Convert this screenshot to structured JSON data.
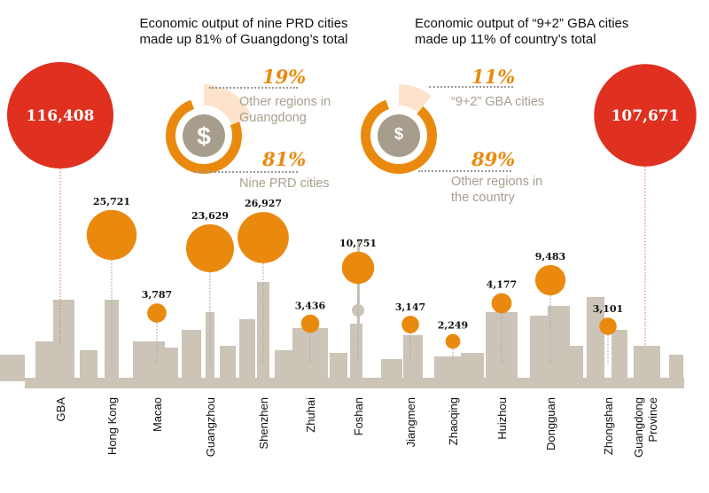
{
  "left_panel": {
    "title": "Economic output of nine PRD cities made up 81% of Guangdong’s total",
    "top_pct": "19%",
    "top_label": "Other regions in Guangdong",
    "bottom_pct": "81%",
    "bottom_label": "Nine PRD cities",
    "icon": "dollar-up-arrow-icon"
  },
  "right_panel": {
    "title": "Economic output of “9+2” GBA cities made up 11% of country’s total",
    "top_pct": "11%",
    "top_label": "“9+2” GBA cities",
    "bottom_pct": "89%",
    "bottom_label": "Other regions in the country",
    "icon": "hands-dollar-icon"
  },
  "colors": {
    "big": "#e03020",
    "small": "#e98a0f",
    "skyline": "#cbc4b7",
    "donut": "#e98a0f",
    "donut_light": "#fde3cc",
    "icon_bg": "#a69d8c"
  },
  "chart_data": {
    "type": "bubble",
    "categories": [
      "GBA",
      "Hong Kong",
      "Macao",
      "Guangzhou",
      "Shenzhen",
      "Zhuhai",
      "Foshan",
      "Jiangmen",
      "Zhaoqing",
      "Huizhou",
      "Dongguan",
      "Zhongshan",
      "Guangdong Province"
    ],
    "values": [
      116408,
      25721,
      3787,
      23629,
      26927,
      3436,
      10751,
      3147,
      2249,
      4177,
      9483,
      3101,
      107671
    ],
    "value_labels": [
      "116,408",
      "25,721",
      "3,787",
      "23,629",
      "26,927",
      "3,436",
      "10,751",
      "3,147",
      "2,249",
      "4,177",
      "9,483",
      "3,101",
      "107,671"
    ],
    "donuts": [
      {
        "values": [
          19,
          81
        ]
      },
      {
        "values": [
          11,
          89
        ]
      }
    ]
  }
}
